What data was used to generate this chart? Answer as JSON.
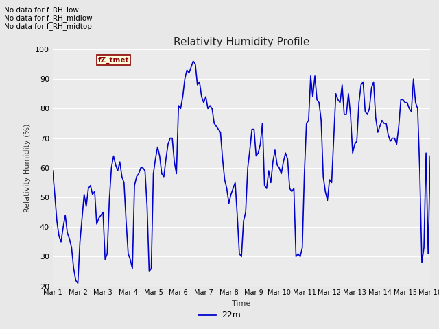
{
  "title": "Relativity Humidity Profile",
  "ylabel": "Relativity Humidity (%)",
  "xlabel": "Time",
  "ylim": [
    20,
    100
  ],
  "yticks": [
    20,
    30,
    40,
    50,
    60,
    70,
    80,
    90,
    100
  ],
  "line_color": "#0000cc",
  "line_width": 1.2,
  "bg_color": "#e8e8e8",
  "plot_bg_color": "#ebebeb",
  "legend_label": "22m",
  "annotations": [
    "No data for f_RH_low",
    "No data for f_RH_midlow",
    "No data for f_RH_midtop"
  ],
  "tooltip_text": "fZ_tmet",
  "xtick_labels": [
    "Mar 1",
    "Mar 2",
    "Mar 3",
    "Mar 4",
    "Mar 5",
    "Mar 6",
    "Mar 7",
    "Mar 8",
    "Mar 9",
    "Mar 10",
    "Mar 11",
    "Mar 12",
    "Mar 13",
    "Mar 14",
    "Mar 15",
    "Mar 16"
  ],
  "x_values": [
    0,
    0.083,
    0.167,
    0.25,
    0.333,
    0.417,
    0.5,
    0.583,
    0.667,
    0.75,
    0.833,
    0.917,
    1,
    1.083,
    1.167,
    1.25,
    1.333,
    1.417,
    1.5,
    1.583,
    1.667,
    1.75,
    1.833,
    1.917,
    2,
    2.083,
    2.167,
    2.25,
    2.333,
    2.417,
    2.5,
    2.583,
    2.667,
    2.75,
    2.833,
    2.917,
    3,
    3.083,
    3.167,
    3.25,
    3.333,
    3.417,
    3.5,
    3.583,
    3.667,
    3.75,
    3.833,
    3.917,
    4,
    4.083,
    4.167,
    4.25,
    4.333,
    4.417,
    4.5,
    4.583,
    4.667,
    4.75,
    4.833,
    4.917,
    5,
    5.083,
    5.167,
    5.25,
    5.333,
    5.417,
    5.5,
    5.583,
    5.667,
    5.75,
    5.833,
    5.917,
    6,
    6.083,
    6.167,
    6.25,
    6.333,
    6.417,
    6.5,
    6.583,
    6.667,
    6.75,
    6.833,
    6.917,
    7,
    7.083,
    7.167,
    7.25,
    7.333,
    7.417,
    7.5,
    7.583,
    7.667,
    7.75,
    7.833,
    7.917,
    8,
    8.083,
    8.167,
    8.25,
    8.333,
    8.417,
    8.5,
    8.583,
    8.667,
    8.75,
    8.833,
    8.917,
    9,
    9.083,
    9.167,
    9.25,
    9.333,
    9.417,
    9.5,
    9.583,
    9.667,
    9.75,
    9.833,
    9.917,
    10,
    10.083,
    10.167,
    10.25,
    10.333,
    10.417,
    10.5,
    10.583,
    10.667,
    10.75,
    10.833,
    10.917,
    11,
    11.083,
    11.167,
    11.25,
    11.333,
    11.417,
    11.5,
    11.583,
    11.667,
    11.75,
    11.833,
    11.917,
    12,
    12.083,
    12.167,
    12.25,
    12.333,
    12.417,
    12.5,
    12.583,
    12.667,
    12.75,
    12.833,
    12.917,
    13,
    13.083,
    13.167,
    13.25,
    13.333,
    13.417,
    13.5,
    13.583,
    13.667,
    13.75,
    13.833,
    13.917,
    14,
    14.083,
    14.167,
    14.25,
    14.333,
    14.417,
    14.5,
    14.583,
    14.667,
    14.75,
    14.833,
    14.917,
    15
  ],
  "y_values": [
    59,
    51,
    42,
    37,
    35,
    40,
    44,
    38,
    36,
    33,
    26,
    22,
    21,
    35,
    43,
    51,
    47,
    53,
    54,
    51,
    52,
    41,
    43,
    44,
    45,
    29,
    31,
    49,
    60,
    64,
    61,
    59,
    62,
    57,
    55,
    42,
    31,
    29,
    26,
    54,
    57,
    58,
    60,
    60,
    59,
    47,
    25,
    26,
    58,
    63,
    67,
    64,
    58,
    57,
    63,
    68,
    70,
    70,
    62,
    58,
    81,
    80,
    84,
    90,
    93,
    92,
    94,
    96,
    95,
    88,
    89,
    84,
    82,
    84,
    80,
    81,
    80,
    75,
    74,
    73,
    72,
    63,
    56,
    53,
    48,
    51,
    53,
    55,
    44,
    31,
    30,
    42,
    45,
    60,
    66,
    73,
    73,
    64,
    65,
    68,
    75,
    54,
    53,
    59,
    55,
    62,
    66,
    61,
    60,
    58,
    62,
    65,
    63,
    53,
    52,
    53,
    30,
    31,
    30,
    33,
    58,
    75,
    76,
    91,
    84,
    91,
    83,
    82,
    76,
    57,
    52,
    49,
    56,
    55,
    70,
    85,
    83,
    82,
    88,
    78,
    78,
    85,
    78,
    65,
    68,
    69,
    82,
    88,
    89,
    79,
    78,
    80,
    87,
    89,
    77,
    72,
    74,
    76,
    75,
    75,
    71,
    69,
    70,
    70,
    68,
    74,
    83,
    83,
    82,
    82,
    80,
    79,
    90,
    82,
    80,
    59,
    28,
    33,
    65,
    31,
    64
  ]
}
